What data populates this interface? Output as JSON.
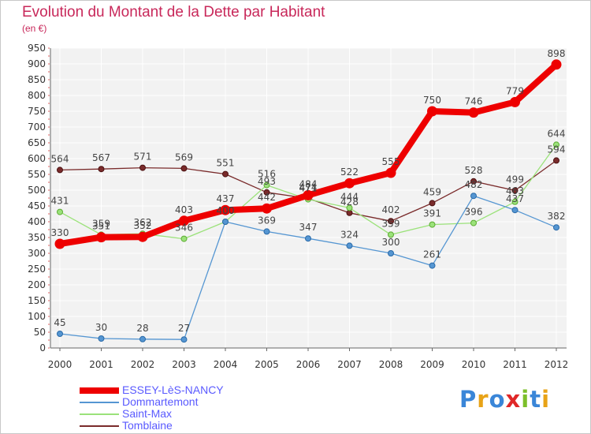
{
  "chart_data": {
    "type": "line",
    "title": "Evolution du Montant de la Dette par Habitant",
    "subtitle": "(en €)",
    "categories": [
      "2000",
      "2001",
      "2002",
      "2003",
      "2004",
      "2005",
      "2006",
      "2007",
      "2008",
      "2009",
      "2010",
      "2011",
      "2012"
    ],
    "ylim": [
      0,
      950
    ],
    "yticks": [
      0,
      50,
      100,
      150,
      200,
      250,
      300,
      350,
      400,
      450,
      500,
      550,
      600,
      650,
      700,
      750,
      800,
      850,
      900,
      950
    ],
    "grid": true,
    "legend_position": "bottom-left",
    "series": [
      {
        "name": "ESSEY-LèS-NANCY",
        "color": "#ee0000",
        "values": [
          330,
          351,
          352,
          403,
          437,
          442,
          484,
          522,
          555,
          750,
          746,
          779,
          898
        ]
      },
      {
        "name": "Dommartemont",
        "color": "#5596d2",
        "values": [
          45,
          30,
          28,
          27,
          400,
          369,
          347,
          324,
          300,
          261,
          482,
          437,
          382
        ]
      },
      {
        "name": "Saint-Max",
        "color": "#9be27a",
        "values": [
          431,
          359,
          362,
          346,
          400,
          516,
          471,
          444,
          359,
          391,
          396,
          463,
          644
        ]
      },
      {
        "name": "Tomblaine",
        "color": "#7a2b2b",
        "values": [
          564,
          567,
          571,
          569,
          551,
          493,
          474,
          428,
          402,
          459,
          528,
          499,
          594
        ]
      }
    ]
  },
  "logo": {
    "text": "Proxiti",
    "colors": [
      "#3a86d8",
      "#e8a317",
      "#3a86d8",
      "#e02828",
      "#7cbf2a",
      "#3a86d8",
      "#e8a317"
    ]
  }
}
